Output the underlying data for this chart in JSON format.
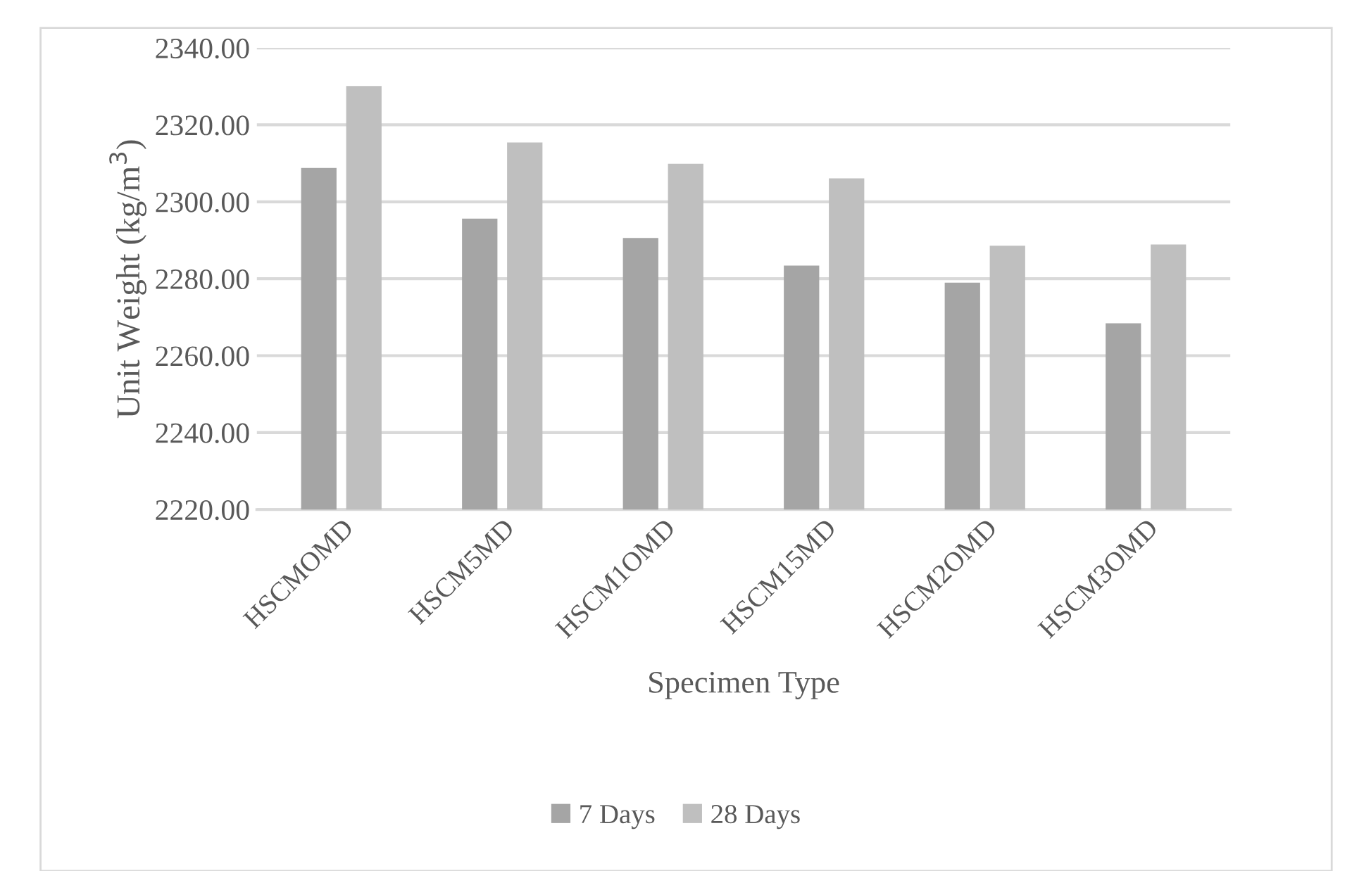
{
  "chart_data": {
    "type": "bar",
    "xlabel": "Specimen Type",
    "ylabel": "Unit Weight (kg/m$^{3}$)",
    "categories": [
      "HSCMOMD",
      "HSCM5MD",
      "HSCM1OMD",
      "HSCM15MD",
      "HSCM2OMD",
      "HSCM3OMD"
    ],
    "series": [
      {
        "name": "7 Days",
        "color": "#a5a5a5",
        "values": [
          2308.8,
          2295.6,
          2290.6,
          2283.4,
          2279.0,
          2268.4
        ]
      },
      {
        "name": "28 Days",
        "color": "#bfbfbf",
        "values": [
          2330.1,
          2315.4,
          2309.9,
          2306.1,
          2288.6,
          2288.9
        ]
      }
    ],
    "ylim": [
      2220,
      2340
    ],
    "yticks": [
      {
        "value": 2220,
        "label": "2220.00"
      },
      {
        "value": 2240,
        "label": "2240.00"
      },
      {
        "value": 2260,
        "label": "2260.00"
      },
      {
        "value": 2280,
        "label": "2280.00"
      },
      {
        "value": 2300,
        "label": "2300.00"
      },
      {
        "value": 2320,
        "label": "2320.00"
      },
      {
        "value": 2340,
        "label": "2340.00"
      }
    ],
    "grid": "y",
    "legend": "bottom"
  }
}
